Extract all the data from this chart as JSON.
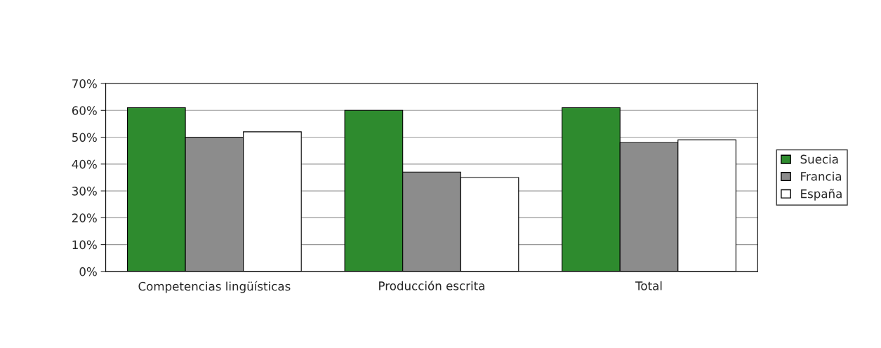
{
  "chart_data": {
    "type": "bar",
    "categories": [
      "Competencias lingüísticas",
      "Producción escrita",
      "Total"
    ],
    "series": [
      {
        "name": "Suecia",
        "color": "#2e8b2e",
        "values": [
          61,
          60,
          61
        ]
      },
      {
        "name": "Francia",
        "color": "#8c8c8c",
        "values": [
          50,
          37,
          48
        ]
      },
      {
        "name": "España",
        "color": "#ffffff",
        "values": [
          52,
          35,
          49
        ]
      }
    ],
    "ylim": [
      0,
      70
    ],
    "yticks": [
      {
        "value": 0,
        "label": "0%"
      },
      {
        "value": 10,
        "label": "10%"
      },
      {
        "value": 20,
        "label": "20%"
      },
      {
        "value": 30,
        "label": "30%"
      },
      {
        "value": 40,
        "label": "40%"
      },
      {
        "value": 50,
        "label": "50%"
      },
      {
        "value": 60,
        "label": "60%"
      },
      {
        "value": 70,
        "label": "70%"
      }
    ],
    "grid": "y",
    "legend": "right"
  }
}
